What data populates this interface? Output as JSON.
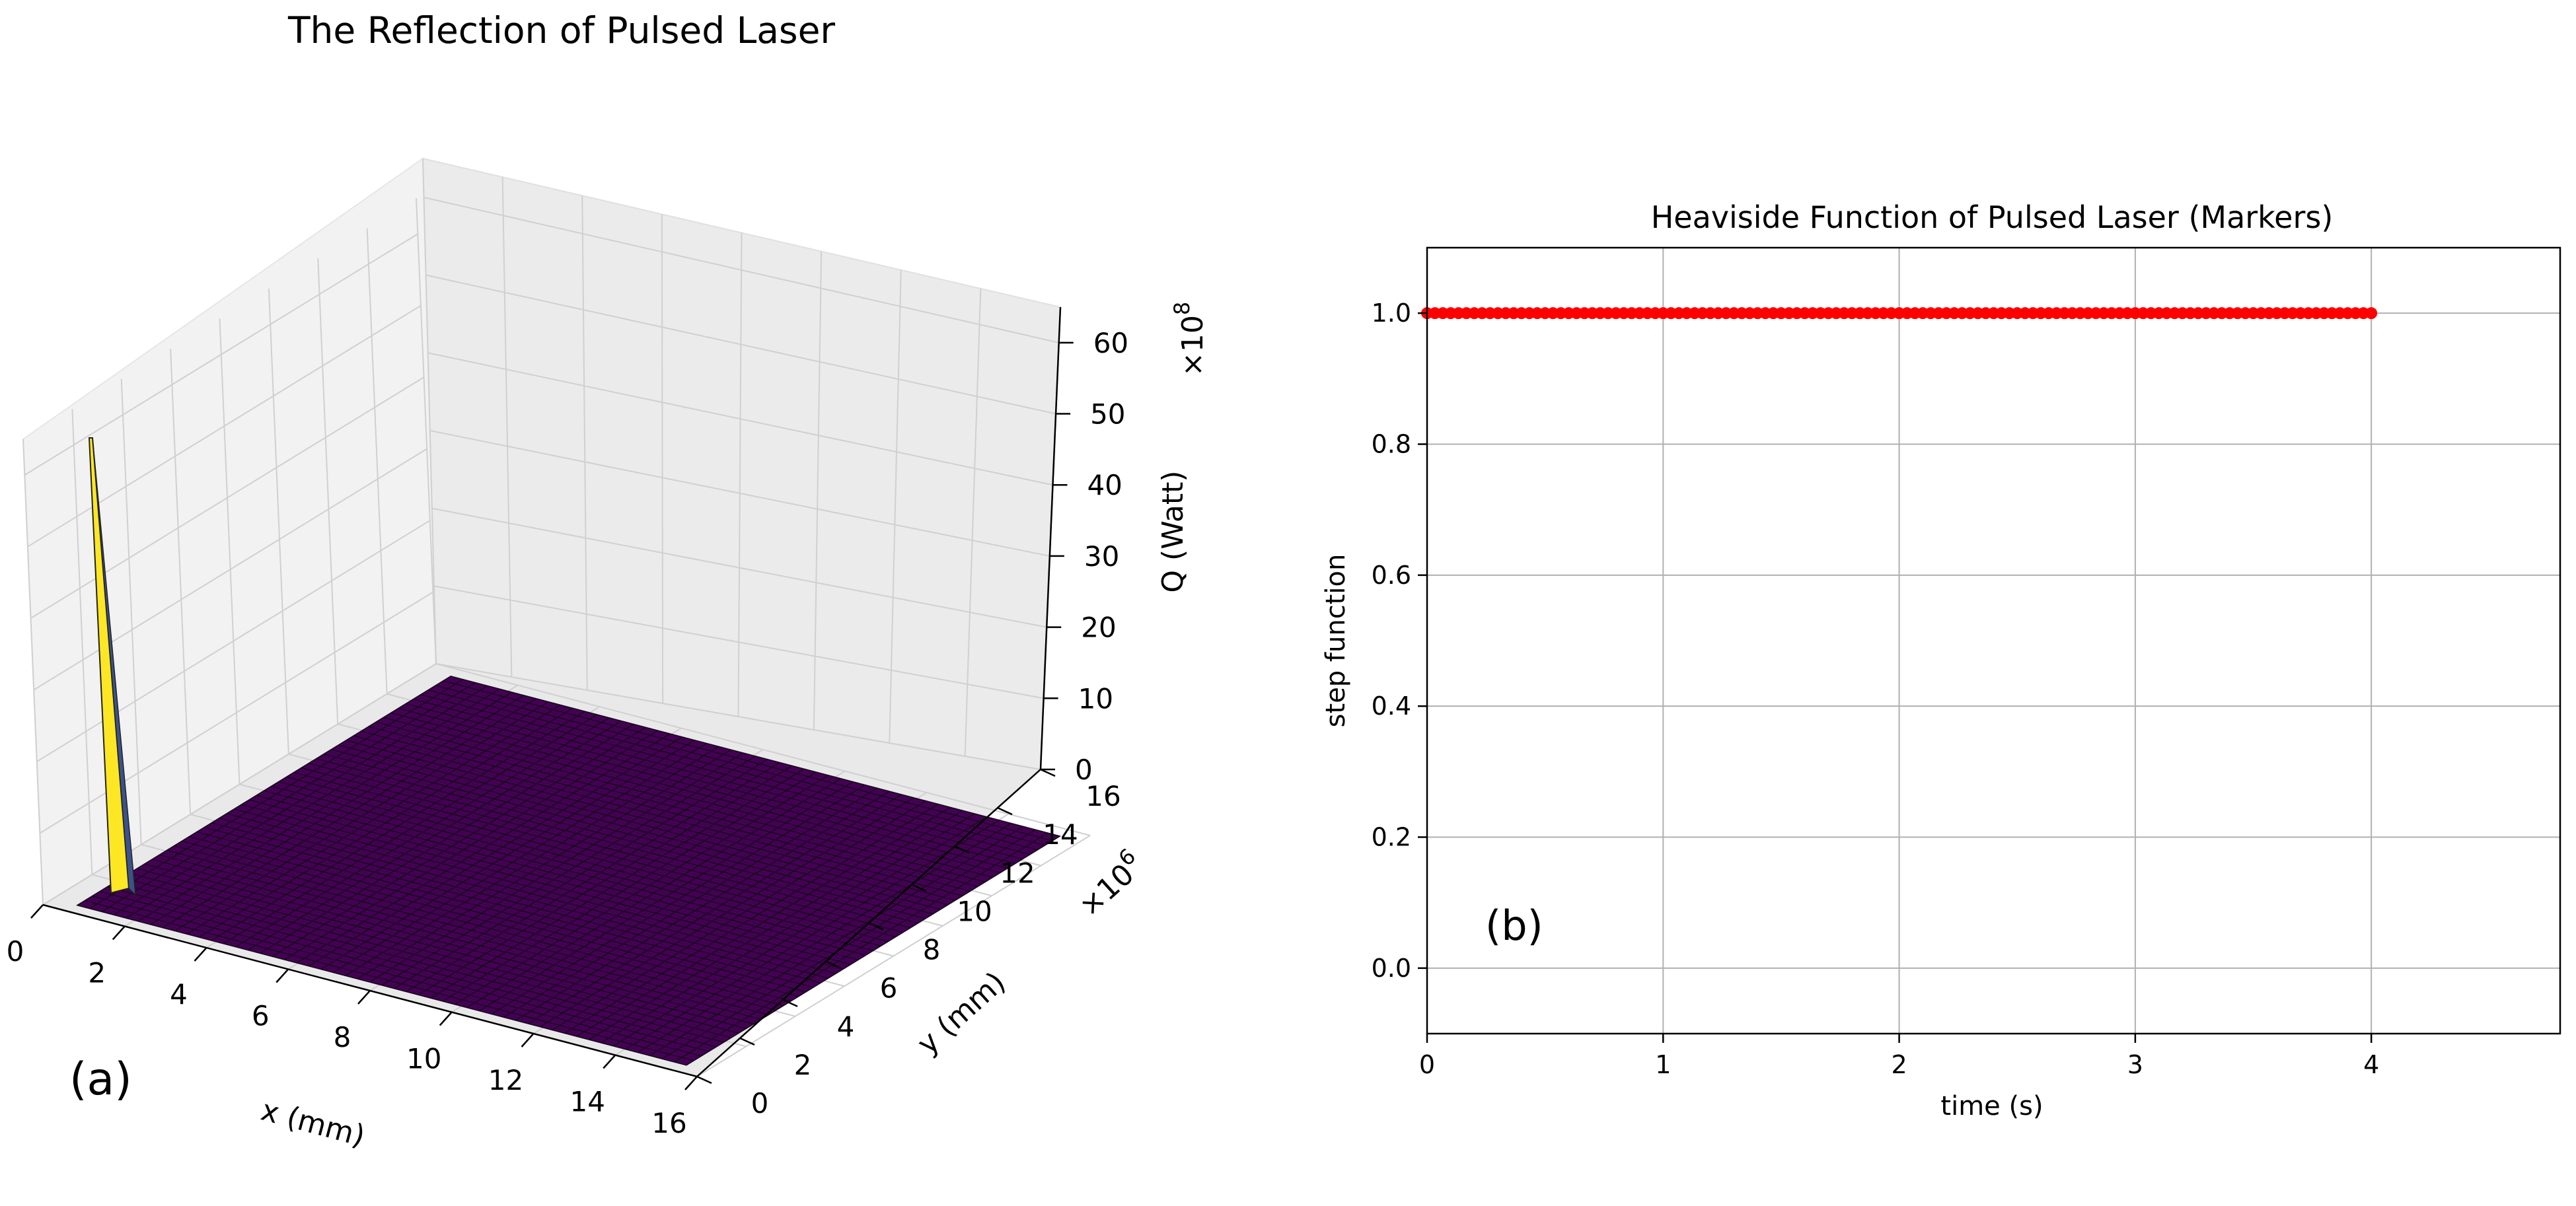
{
  "chart_data": [
    {
      "type": "surface3d",
      "title": "The Reflection of Pulsed Laser",
      "xlabel": "x (mm)",
      "ylabel": "y (mm)",
      "zlabel": "Q (Watt)",
      "x_ticks": [
        "0",
        "2",
        "4",
        "6",
        "8",
        "10",
        "12",
        "14",
        "16"
      ],
      "y_ticks": [
        "0",
        "2",
        "4",
        "6",
        "8",
        "10",
        "12",
        "14",
        "16"
      ],
      "z_ticks": [
        "0",
        "10",
        "20",
        "30",
        "40",
        "50",
        "60"
      ],
      "y_offset_text": "×10",
      "y_offset_exp": "6",
      "z_offset_text": "×10",
      "z_offset_exp": "8",
      "xlim": [
        0,
        16
      ],
      "ylim": [
        0,
        16
      ],
      "zlim": [
        0,
        65
      ],
      "peak": {
        "x": 0,
        "y": 0,
        "z": 52
      },
      "surface_level": 0,
      "colormap": [
        "#440154",
        "#fde725"
      ],
      "grid": true,
      "annotation": "(a)"
    },
    {
      "type": "scatter",
      "title": "Heaviside Function of Pulsed Laser (Markers)",
      "xlabel": "time (s)",
      "ylabel": "step function",
      "x_ticks": [
        "0",
        "1",
        "2",
        "3",
        "4"
      ],
      "y_ticks": [
        "0.0",
        "0.2",
        "0.4",
        "0.6",
        "0.8",
        "1.0"
      ],
      "xlim": [
        0,
        4.8
      ],
      "ylim": [
        -0.1,
        1.1
      ],
      "series": [
        {
          "x_start": 0,
          "x_end": 4,
          "count": 121,
          "y": 1.0,
          "color": "#ff0000"
        }
      ],
      "grid": true,
      "annotation": "(b)"
    }
  ]
}
